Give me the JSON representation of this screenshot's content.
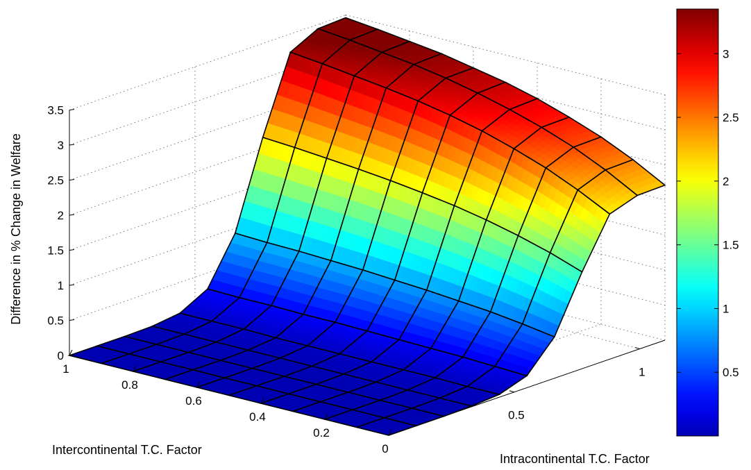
{
  "chart_data": {
    "type": "surface",
    "zlabel": "Difference in % Change in Welfare",
    "xlabel": "Intercontinental T.C. Factor",
    "ylabel": "Intracontinental T.C. Factor",
    "x_ticks": [
      "0",
      "0.2",
      "0.4",
      "0.6",
      "0.8",
      "1"
    ],
    "y_ticks": [
      "0.5",
      "1"
    ],
    "z_ticks": [
      "0",
      "0.5",
      "1",
      "1.5",
      "2",
      "2.5",
      "3",
      "3.5"
    ],
    "xlim": [
      0,
      1
    ],
    "ylim": [
      0,
      1.1
    ],
    "zlim": [
      0,
      3.5
    ],
    "grid": "on",
    "colormap": "jet",
    "colorbar": {
      "ticks": [
        "0.5",
        "1",
        "1.5",
        "2",
        "2.5",
        "3"
      ],
      "tick_values": [
        0.5,
        1,
        1.5,
        2,
        2.5,
        3
      ],
      "range": [
        0,
        3.35
      ],
      "placement": "right"
    },
    "surface": {
      "x": [
        0,
        0.1,
        0.2,
        0.3,
        0.4,
        0.5,
        0.6,
        0.7,
        0.8,
        0.9,
        1.0
      ],
      "y": [
        0,
        0.11,
        0.22,
        0.33,
        0.44,
        0.55,
        0.66,
        0.77,
        0.88,
        0.99,
        1.1
      ],
      "z": [
        [
          0.0,
          0.0,
          0.0,
          0.0,
          0.0,
          0.0,
          0.0,
          0.0,
          0.0,
          0.0,
          0.0
        ],
        [
          0.0,
          0.0,
          0.0,
          0.0,
          0.0,
          0.0,
          0.0,
          0.0,
          0.0,
          0.0,
          0.0
        ],
        [
          0.0,
          0.0,
          0.0,
          0.0,
          0.0,
          0.0,
          0.0,
          0.0,
          0.0,
          0.0,
          0.0
        ],
        [
          0.01,
          0.01,
          0.01,
          0.01,
          0.01,
          0.01,
          0.01,
          0.01,
          0.01,
          0.01,
          0.01
        ],
        [
          0.04,
          0.04,
          0.05,
          0.05,
          0.05,
          0.05,
          0.05,
          0.05,
          0.06,
          0.06,
          0.06
        ],
        [
          0.17,
          0.19,
          0.21,
          0.22,
          0.23,
          0.24,
          0.25,
          0.25,
          0.26,
          0.26,
          0.27
        ],
        [
          0.59,
          0.66,
          0.72,
          0.76,
          0.8,
          0.83,
          0.86,
          0.88,
          0.9,
          0.91,
          0.93
        ],
        [
          1.38,
          1.54,
          1.67,
          1.78,
          1.87,
          1.94,
          2.0,
          2.05,
          2.09,
          2.13,
          2.16
        ],
        [
          2.07,
          2.3,
          2.5,
          2.66,
          2.8,
          2.91,
          3.0,
          3.07,
          3.13,
          3.19,
          3.24
        ],
        [
          2.2,
          2.45,
          2.66,
          2.83,
          2.97,
          3.09,
          3.19,
          3.27,
          3.33,
          3.39,
          3.44
        ],
        [
          2.21,
          2.46,
          2.67,
          2.84,
          2.99,
          3.11,
          3.2,
          3.29,
          3.35,
          3.41,
          3.46
        ]
      ]
    }
  }
}
